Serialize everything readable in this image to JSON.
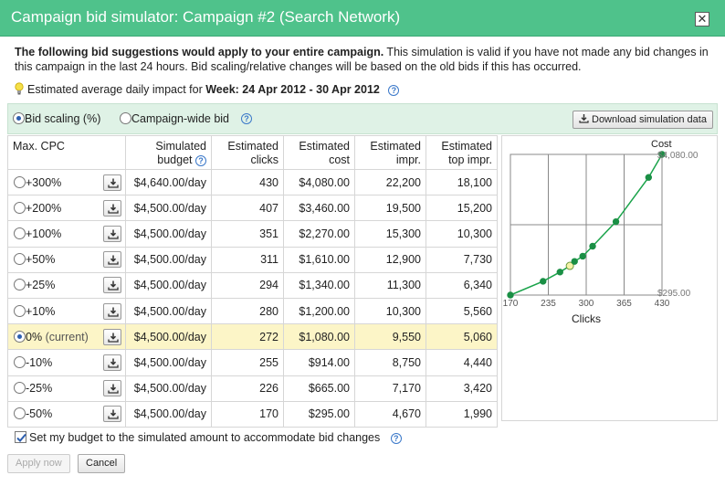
{
  "dialog": {
    "title": "Campaign bid simulator: Campaign #2 (Search Network)",
    "close_glyph": "✕"
  },
  "intro": {
    "bold": "The following bid suggestions would apply to your entire campaign.",
    "rest": " This simulation is valid if you have not made any bid changes in this campaign in the last 24 hours. Bid scaling/relative changes will be based on the old bids if this has occurred."
  },
  "impact": {
    "prefix": "Estimated average daily impact for ",
    "period": "Week: 24 Apr 2012 - 30 Apr 2012"
  },
  "toolbar": {
    "options": [
      {
        "label": "Bid scaling (%)",
        "checked": true
      },
      {
        "label": "Campaign-wide bid",
        "checked": false
      }
    ],
    "download_label": "Download simulation data"
  },
  "table": {
    "headers": {
      "cpc": "Max. CPC",
      "budget": [
        "Simulated",
        "budget"
      ],
      "clicks": [
        "Estimated",
        "clicks"
      ],
      "cost": [
        "Estimated",
        "cost"
      ],
      "impr": [
        "Estimated",
        "impr."
      ],
      "top": [
        "Estimated",
        "top impr."
      ]
    },
    "rows": [
      {
        "cpc": "+300%",
        "note": "",
        "budget": "$4,640.00/day",
        "clicks": "430",
        "cost": "$4,080.00",
        "impr": "22,200",
        "top": "18,100",
        "current": false
      },
      {
        "cpc": "+200%",
        "note": "",
        "budget": "$4,500.00/day",
        "clicks": "407",
        "cost": "$3,460.00",
        "impr": "19,500",
        "top": "15,200",
        "current": false
      },
      {
        "cpc": "+100%",
        "note": "",
        "budget": "$4,500.00/day",
        "clicks": "351",
        "cost": "$2,270.00",
        "impr": "15,300",
        "top": "10,300",
        "current": false
      },
      {
        "cpc": "+50%",
        "note": "",
        "budget": "$4,500.00/day",
        "clicks": "311",
        "cost": "$1,610.00",
        "impr": "12,900",
        "top": "7,730",
        "current": false
      },
      {
        "cpc": "+25%",
        "note": "",
        "budget": "$4,500.00/day",
        "clicks": "294",
        "cost": "$1,340.00",
        "impr": "11,300",
        "top": "6,340",
        "current": false
      },
      {
        "cpc": "+10%",
        "note": "",
        "budget": "$4,500.00/day",
        "clicks": "280",
        "cost": "$1,200.00",
        "impr": "10,300",
        "top": "5,560",
        "current": false
      },
      {
        "cpc": "0%",
        "note": "(current)",
        "budget": "$4,500.00/day",
        "clicks": "272",
        "cost": "$1,080.00",
        "impr": "9,550",
        "top": "5,060",
        "current": true
      },
      {
        "cpc": "-10%",
        "note": "",
        "budget": "$4,500.00/day",
        "clicks": "255",
        "cost": "$914.00",
        "impr": "8,750",
        "top": "4,440",
        "current": false
      },
      {
        "cpc": "-25%",
        "note": "",
        "budget": "$4,500.00/day",
        "clicks": "226",
        "cost": "$665.00",
        "impr": "7,170",
        "top": "3,420",
        "current": false
      },
      {
        "cpc": "-50%",
        "note": "",
        "budget": "$4,500.00/day",
        "clicks": "170",
        "cost": "$295.00",
        "impr": "4,670",
        "top": "1,990",
        "current": false
      }
    ]
  },
  "chart_data": {
    "type": "line",
    "xlabel": "Clicks",
    "ylabel": "Cost",
    "xlim": [
      170,
      430
    ],
    "x_ticks": [
      "170",
      "235",
      "300",
      "365",
      "430"
    ],
    "y_ticks": [
      "$295.00",
      "$4,080.00"
    ],
    "ylim": [
      295,
      4080
    ],
    "grid": true,
    "series": [
      {
        "x": [
          170,
          226,
          255,
          272,
          280,
          294,
          311,
          351,
          407,
          430
        ],
        "y": [
          295,
          665,
          914,
          1080,
          1200,
          1340,
          1610,
          2270,
          3460,
          4080
        ],
        "highlight_x": 272
      }
    ],
    "colors": {
      "line": "#1aa34a",
      "point": "#1a8f45",
      "highlight": "#f6f3a8",
      "grid": "#888888"
    }
  },
  "footer": {
    "checkbox_label": "Set my budget to the simulated amount to accommodate bid changes",
    "checkbox_checked": true,
    "apply_label": "Apply now",
    "cancel_label": "Cancel"
  }
}
